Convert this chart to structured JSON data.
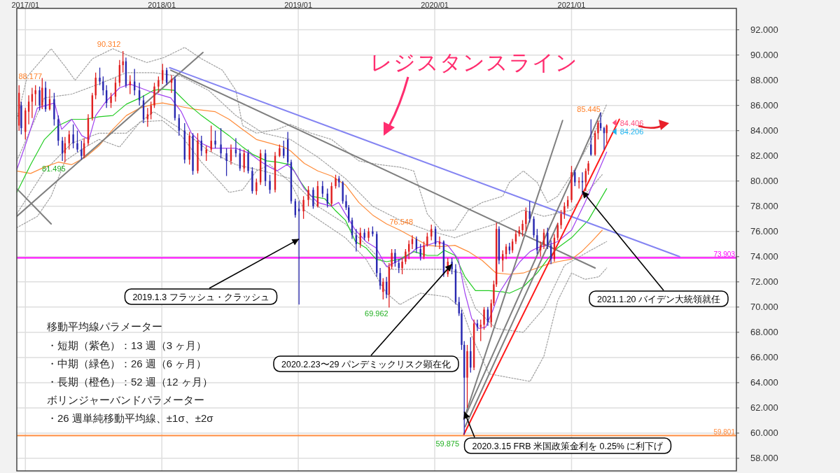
{
  "chart_data": {
    "type": "candlestick",
    "xlim": [
      "2016-12-09",
      "2022-03-18"
    ],
    "ylim": [
      57.0,
      93.7
    ],
    "grid": true,
    "xticks": [
      {
        "value": "2017-01-01",
        "label": "2017/01"
      },
      {
        "value": "2018-01-01",
        "label": "2018/01"
      },
      {
        "value": "2019-01-01",
        "label": "2019/01"
      },
      {
        "value": "2020-01-01",
        "label": "2020/01"
      },
      {
        "value": "2021-01-01",
        "label": "2021/01"
      }
    ],
    "yticks": [
      {
        "value": 58,
        "label": "58.000"
      },
      {
        "value": 60,
        "label": "60.000"
      },
      {
        "value": 62,
        "label": "62.000"
      },
      {
        "value": 64,
        "label": "64.000"
      },
      {
        "value": 66,
        "label": "66.000"
      },
      {
        "value": 68,
        "label": "68.000"
      },
      {
        "value": 70,
        "label": "70.000"
      },
      {
        "value": 72,
        "label": "72.000"
      },
      {
        "value": 74,
        "label": "74.000"
      },
      {
        "value": 76,
        "label": "76.000"
      },
      {
        "value": 78,
        "label": "78.000"
      },
      {
        "value": 80,
        "label": "80.000"
      },
      {
        "value": 82,
        "label": "82.000"
      },
      {
        "value": 84,
        "label": "84.000"
      },
      {
        "value": 86,
        "label": "86.000"
      },
      {
        "value": 88,
        "label": "88.000"
      },
      {
        "value": 90,
        "label": "90.000"
      },
      {
        "value": 92,
        "label": "92.000"
      }
    ],
    "ref_lines": [
      {
        "axis": "y",
        "value": 73.903,
        "label": "73.903",
        "color": "#ff00ff"
      },
      {
        "axis": "y",
        "value": 59.801,
        "label": "59.801",
        "color": "#ff8c40"
      }
    ],
    "series": [
      {
        "type": "line",
        "color": "#a0a0a0",
        "line_style": "dotted",
        "x": [
          "2016-12-09",
          "2017-01-06",
          "2017-03-11",
          "2017-04-17",
          "2017-05-14",
          "2017-06-29",
          "2017-08-23",
          "2017-10-08",
          "2017-11-22",
          "2018-01-07",
          "2018-03-03",
          "2018-04-17",
          "2018-06-12",
          "2018-07-18",
          "2018-08-05",
          "2018-09-11",
          "2018-11-05",
          "2018-12-11",
          "2019-02-04",
          "2019-03-31",
          "2019-06-12",
          "2019-08-06",
          "2019-09-30",
          "2019-11-06",
          "2019-12-12",
          "2020-01-18",
          "2020-02-24",
          "2020-03-31",
          "2020-05-07",
          "2020-07-01",
          "2020-07-19",
          "2020-08-25",
          "2020-10-01",
          "2020-10-29",
          "2020-11-25",
          "2021-01-01",
          "2021-02-24",
          "2021-04-05"
        ],
        "values": [
          84.9,
          88.3,
          90.5,
          89.1,
          88.0,
          89.7,
          90.5,
          89.9,
          89.4,
          89.8,
          90.6,
          89.7,
          88.8,
          87.2,
          84.4,
          83.8,
          84.1,
          84.5,
          83.8,
          83.3,
          81.6,
          81.3,
          81.1,
          80.8,
          77.4,
          76.1,
          76.1,
          77.7,
          78.3,
          78.8,
          79.9,
          80.8,
          79.9,
          78.3,
          78.8,
          80.5,
          83.3,
          86.1
        ]
      },
      {
        "type": "line",
        "color": "#a0a0a0",
        "line_style": "dotted",
        "x": [
          "2016-12-09",
          "2017-02-21",
          "2017-05-05",
          "2017-07-17",
          "2017-09-28",
          "2017-12-10",
          "2018-02-22",
          "2018-05-06",
          "2018-07-18",
          "2018-09-29",
          "2018-12-11",
          "2019-02-22",
          "2019-05-07",
          "2019-07-19",
          "2019-09-30",
          "2019-12-12",
          "2020-02-24",
          "2020-04-19",
          "2020-06-13",
          "2020-08-25",
          "2020-10-19",
          "2021-01-01",
          "2021-03-24"
        ],
        "values": [
          81.6,
          86.6,
          86.9,
          87.7,
          88.6,
          88.6,
          88.3,
          87.2,
          85.2,
          83.8,
          83.3,
          81.9,
          80.2,
          78.0,
          76.9,
          76.1,
          75.5,
          76.1,
          76.6,
          77.7,
          77.2,
          77.7,
          80.5
        ]
      },
      {
        "type": "line",
        "color": "#a0a0a0",
        "line_style": "dotted",
        "x": [
          "2016-12-09",
          "2017-02-21",
          "2017-05-05",
          "2017-07-17",
          "2017-09-28",
          "2017-12-10",
          "2018-02-22",
          "2018-05-06",
          "2018-07-18",
          "2018-09-29",
          "2018-12-11",
          "2019-02-22",
          "2019-05-07",
          "2019-07-19",
          "2019-09-03",
          "2019-11-06",
          "2020-01-18",
          "2020-03-13",
          "2020-04-19",
          "2020-06-13",
          "2020-08-25",
          "2020-10-19",
          "2020-12-13",
          "2021-02-15",
          "2021-04-05"
        ],
        "values": [
          77.4,
          80.8,
          83.0,
          83.8,
          83.8,
          85.5,
          84.1,
          82.4,
          81.3,
          80.8,
          80.2,
          78.0,
          76.6,
          74.4,
          73.0,
          73.0,
          73.0,
          72.7,
          69.9,
          68.3,
          68.0,
          69.9,
          73.3,
          74.4,
          75.2
        ]
      },
      {
        "type": "line",
        "color": "#a0a0a0",
        "line_style": "dotted",
        "x": [
          "2016-12-09",
          "2017-02-02",
          "2017-03-11",
          "2017-04-17",
          "2017-06-11",
          "2017-07-17",
          "2017-09-10",
          "2017-11-04",
          "2018-01-03",
          "2018-02-22",
          "2018-04-17",
          "2018-06-12",
          "2018-06-30",
          "2018-08-05",
          "2018-09-11",
          "2018-10-17",
          "2018-12-11",
          "2019-01-17",
          "2019-03-13",
          "2019-05-07",
          "2019-07-01",
          "2019-08-25",
          "2019-09-30",
          "2019-11-24",
          "2020-02-05",
          "2020-03-13",
          "2020-04-09",
          "2020-05-25",
          "2020-07-19",
          "2020-09-12",
          "2020-10-19",
          "2020-11-25",
          "2021-01-01",
          "2021-02-06",
          "2021-03-15",
          "2021-04-05"
        ],
        "values": [
          76.3,
          77.2,
          78.8,
          81.6,
          82.7,
          83.3,
          82.7,
          84.7,
          84.8,
          83.6,
          81.5,
          79.7,
          79.1,
          79.3,
          80.8,
          81.3,
          79.9,
          77.7,
          76.6,
          75.5,
          73.8,
          71.1,
          70.2,
          71.1,
          70.8,
          69.9,
          67.7,
          64.7,
          64.4,
          64.1,
          66.1,
          70.5,
          72.7,
          72.2,
          72.4,
          73.1
        ]
      },
      {
        "type": "line",
        "color": "#ff8c3a",
        "x": [
          "2016-12-09",
          "2017-01-15",
          "2017-02-21",
          "2017-03-30",
          "2017-05-05",
          "2017-06-11",
          "2017-07-17",
          "2017-08-23",
          "2017-09-28",
          "2017-11-04",
          "2017-12-10",
          "2018-01-03",
          "2018-02-22",
          "2018-03-30",
          "2018-05-24",
          "2018-06-30",
          "2018-08-05",
          "2018-09-11",
          "2018-10-17",
          "2018-11-23",
          "2018-12-11",
          "2019-01-17",
          "2019-02-22",
          "2019-03-31",
          "2019-05-07",
          "2019-06-12",
          "2019-07-19",
          "2019-08-25",
          "2019-09-30",
          "2019-11-06",
          "2019-12-12",
          "2020-01-18",
          "2020-02-24",
          "2020-03-31",
          "2020-05-07",
          "2020-06-13",
          "2020-07-19",
          "2020-08-25",
          "2020-10-01",
          "2020-10-29",
          "2020-11-25",
          "2021-01-01",
          "2021-01-28",
          "2021-02-24",
          "2021-03-24"
        ],
        "values": [
          80.8,
          80.6,
          81.1,
          81.5,
          81.3,
          81.9,
          82.8,
          84.1,
          85.2,
          85.8,
          86.1,
          86.2,
          85.9,
          85.7,
          85.5,
          84.9,
          84.1,
          83.3,
          83.0,
          82.7,
          82.4,
          81.4,
          80.8,
          80.4,
          79.7,
          78.3,
          77.3,
          76.6,
          76.1,
          75.5,
          74.9,
          74.8,
          74.9,
          74.4,
          73.7,
          72.7,
          72.6,
          72.7,
          73.1,
          73.4,
          73.6,
          73.8,
          74.4,
          75.2,
          76.1
        ]
      },
      {
        "type": "line",
        "color": "#22cc22",
        "x": [
          "2016-12-09",
          "2017-01-15",
          "2017-02-21",
          "2017-03-30",
          "2017-05-05",
          "2017-06-11",
          "2017-07-17",
          "2017-08-23",
          "2017-09-28",
          "2017-11-04",
          "2017-12-10",
          "2018-01-03",
          "2018-02-03",
          "2018-03-12",
          "2018-04-17",
          "2018-05-24",
          "2018-06-30",
          "2018-08-05",
          "2018-09-02",
          "2018-10-08",
          "2018-11-05",
          "2018-12-11",
          "2019-01-08",
          "2019-02-04",
          "2019-03-13",
          "2019-04-09",
          "2019-05-07",
          "2019-06-03",
          "2019-07-01",
          "2019-07-28",
          "2019-08-25",
          "2019-09-30",
          "2019-11-06",
          "2019-12-12",
          "2020-01-09",
          "2020-01-27",
          "2020-02-24",
          "2020-03-22",
          "2020-04-19",
          "2020-05-25",
          "2020-07-01",
          "2020-07-19",
          "2020-08-25",
          "2020-10-01",
          "2020-10-29",
          "2020-11-25",
          "2021-01-01",
          "2021-02-15",
          "2021-04-05"
        ],
        "values": [
          79.1,
          81.3,
          83.3,
          84.4,
          84.9,
          84.9,
          85.1,
          85.2,
          86.1,
          86.6,
          87.2,
          87.3,
          87.2,
          86.1,
          85.2,
          84.4,
          83.6,
          82.7,
          82.1,
          81.6,
          81.5,
          81.3,
          79.9,
          78.8,
          78.6,
          77.7,
          76.9,
          75.2,
          74.7,
          73.8,
          73.6,
          73.8,
          74.4,
          74.1,
          74.1,
          74.5,
          74.1,
          72.4,
          71.3,
          71.3,
          71.2,
          71.1,
          71.6,
          72.7,
          73.8,
          74.7,
          75.5,
          76.9,
          79.4
        ]
      },
      {
        "type": "line",
        "color": "#a040f0",
        "x": [
          "2016-12-09",
          "2017-01-06",
          "2017-02-02",
          "2017-03-20",
          "2017-04-08",
          "2017-05-05",
          "2017-06-01",
          "2017-06-20",
          "2017-07-08",
          "2017-08-04",
          "2017-09-10",
          "2017-10-08",
          "2017-11-04",
          "2017-12-10",
          "2018-01-25",
          "2018-02-22",
          "2018-03-21",
          "2018-04-17",
          "2018-05-15",
          "2018-06-12",
          "2018-07-18",
          "2018-08-24",
          "2018-09-20",
          "2018-10-17",
          "2018-11-05",
          "2018-12-02",
          "2018-12-21",
          "2019-01-17",
          "2019-02-22",
          "2019-03-31",
          "2019-04-19",
          "2019-05-07",
          "2019-06-03",
          "2019-07-01",
          "2019-07-28",
          "2019-08-25",
          "2019-09-21",
          "2019-10-18",
          "2019-11-15",
          "2019-12-12",
          "2020-01-09",
          "2020-02-05",
          "2020-03-04",
          "2020-03-22",
          "2020-04-09",
          "2020-04-28",
          "2020-05-16",
          "2020-06-04",
          "2020-06-21",
          "2020-07-19",
          "2020-08-16",
          "2020-09-12",
          "2020-10-01",
          "2020-10-29",
          "2020-11-25",
          "2021-01-01",
          "2021-02-06",
          "2021-04-05"
        ],
        "values": [
          80.9,
          83.3,
          85.8,
          86.2,
          84.1,
          84.9,
          83.6,
          83.3,
          85.2,
          86.3,
          87.4,
          87.7,
          87.4,
          87.0,
          86.6,
          85.5,
          83.8,
          83.0,
          82.6,
          82.6,
          82.6,
          82.2,
          81.6,
          81.1,
          80.8,
          81.3,
          80.8,
          79.4,
          78.3,
          78.0,
          78.3,
          77.4,
          76.1,
          75.2,
          74.7,
          73.2,
          73.6,
          74.0,
          74.7,
          74.9,
          75.2,
          74.9,
          73.8,
          71.1,
          69.1,
          68.3,
          68.4,
          69.7,
          71.1,
          72.4,
          73.6,
          74.4,
          74.7,
          74.9,
          75.2,
          76.1,
          78.3,
          82.3
        ]
      },
      {
        "type": "line",
        "color": "#7f7f7f",
        "x": [
          "2016-12-09",
          "2018-04-21"
        ],
        "values": [
          77.2,
          90.2
        ]
      },
      {
        "type": "line",
        "color": "#7f7f7f",
        "x": [
          "2016-12-09",
          "2017-03-11"
        ],
        "values": [
          79.4,
          76.6
        ]
      },
      {
        "type": "line",
        "color": "#7f7f7f",
        "x": [
          "2018-01-25",
          "2021-03-05"
        ],
        "values": [
          88.8,
          73.1
        ]
      },
      {
        "type": "line",
        "color": "#8484f2",
        "x": [
          "2018-01-22",
          "2021-10-17"
        ],
        "values": [
          89.0,
          74.0
        ]
      },
      {
        "type": "line",
        "color": "#7f7f7f",
        "x": [
          "2020-03-19",
          "2020-12-08"
        ],
        "values": [
          61.1,
          84.8
        ]
      },
      {
        "type": "line",
        "color": "#7f7f7f",
        "x": [
          "2020-03-19",
          "2021-03-20"
        ],
        "values": [
          61.1,
          85.4
        ]
      },
      {
        "type": "line",
        "color": "#7f7f7f",
        "x": [
          "2020-03-22",
          "2020-11-25"
        ],
        "values": [
          60.5,
          76.6
        ]
      },
      {
        "type": "line",
        "color": "#ff1a1a",
        "x": [
          "2020-03-19",
          "2021-05-09"
        ],
        "values": [
          59.9,
          84.9
        ]
      },
      {
        "x": [
          "2016-12-15",
          "2016-12-21",
          "2017-01-01",
          "2017-01-10",
          "2017-01-19",
          "2017-01-28",
          "2017-02-08",
          "2017-02-15",
          "2017-02-24",
          "2017-03-07",
          "2017-03-19",
          "2017-03-30",
          "2017-04-10",
          "2017-04-17",
          "2017-04-28",
          "2017-05-09",
          "2017-05-20",
          "2017-05-31",
          "2017-06-07",
          "2017-06-18",
          "2017-06-29",
          "2017-07-08",
          "2017-07-19",
          "2017-07-28",
          "2017-08-06",
          "2017-08-18",
          "2017-08-30",
          "2017-09-10",
          "2017-09-19",
          "2017-09-27",
          "2017-10-08",
          "2017-10-20",
          "2017-11-02",
          "2017-11-13",
          "2017-11-24",
          "2017-12-03",
          "2017-12-12",
          "2017-12-23",
          "2018-01-03",
          "2018-01-14",
          "2018-01-27",
          "2018-02-05",
          "2018-02-16",
          "2018-03-03",
          "2018-03-16",
          "2018-03-25",
          "2018-04-07",
          "2018-04-17",
          "2018-04-30",
          "2018-05-13",
          "2018-05-24",
          "2018-06-08",
          "2018-06-23",
          "2018-07-05",
          "2018-07-18",
          "2018-07-29",
          "2018-08-09",
          "2018-08-20",
          "2018-08-31",
          "2018-09-11",
          "2018-09-22",
          "2018-10-05",
          "2018-10-17",
          "2018-10-31",
          "2018-11-12",
          "2018-11-23",
          "2018-12-04",
          "2018-12-13",
          "2018-12-24",
          "2019-01-03",
          "2019-01-15",
          "2019-01-28",
          "2019-02-10",
          "2019-02-22",
          "2019-03-07",
          "2019-03-20",
          "2019-03-31",
          "2019-04-11",
          "2019-04-20",
          "2019-04-30",
          "2019-05-09",
          "2019-05-16",
          "2019-05-25",
          "2019-06-05",
          "2019-06-16",
          "2019-06-27",
          "2019-07-08",
          "2019-07-19",
          "2019-07-30",
          "2019-08-08",
          "2019-08-16",
          "2019-08-25",
          "2019-09-01",
          "2019-09-08",
          "2019-09-17",
          "2019-09-27",
          "2019-10-06",
          "2019-10-15",
          "2019-10-24",
          "2019-11-02",
          "2019-11-13",
          "2019-11-24",
          "2019-12-03",
          "2019-12-12",
          "2019-12-23",
          "2020-01-03",
          "2020-01-14",
          "2020-01-25",
          "2020-02-05",
          "2020-02-16",
          "2020-02-26",
          "2020-03-06",
          "2020-03-13",
          "2020-03-20",
          "2020-03-28",
          "2020-04-06",
          "2020-04-15",
          "2020-04-24",
          "2020-05-03",
          "2020-05-12",
          "2020-05-22",
          "2020-05-31",
          "2020-06-07",
          "2020-06-14",
          "2020-06-21",
          "2020-07-01",
          "2020-07-10",
          "2020-07-19",
          "2020-07-27",
          "2020-08-05",
          "2020-08-14",
          "2020-08-23",
          "2020-09-01",
          "2020-09-11",
          "2020-09-22",
          "2020-10-01",
          "2020-10-10",
          "2020-10-19",
          "2020-10-29",
          "2020-11-07",
          "2020-11-16",
          "2020-11-25",
          "2020-12-04",
          "2020-12-13",
          "2020-12-22",
          "2021-01-01",
          "2021-01-10",
          "2021-01-21",
          "2021-01-30",
          "2021-02-08",
          "2021-02-15",
          "2021-02-22",
          "2021-03-05",
          "2021-03-13",
          "2021-03-20",
          "2021-03-29",
          "2021-04-05"
        ],
        "ohlc": [
          [
            84.4,
            87.6,
            84.0,
            87.0
          ],
          [
            86.0,
            86.3,
            83.7,
            84.2
          ],
          [
            83.9,
            85.8,
            83.3,
            85.6
          ],
          [
            85.5,
            86.8,
            84.5,
            86.3
          ],
          [
            86.3,
            87.4,
            85.0,
            86.9
          ],
          [
            86.9,
            87.6,
            86.0,
            87.2
          ],
          [
            87.2,
            87.5,
            85.6,
            86.0
          ],
          [
            86.0,
            88.177,
            85.7,
            87.4
          ],
          [
            87.4,
            87.9,
            85.5,
            85.7
          ],
          [
            85.7,
            87.3,
            85.6,
            86.5
          ],
          [
            86.5,
            87.0,
            84.4,
            84.9
          ],
          [
            84.9,
            85.2,
            82.8,
            83.2
          ],
          [
            83.2,
            83.5,
            81.6,
            82.2
          ],
          [
            82.2,
            83.5,
            81.495,
            83.0
          ],
          [
            83.0,
            84.0,
            82.5,
            83.7
          ],
          [
            83.7,
            84.5,
            82.6,
            83.0
          ],
          [
            83.0,
            84.0,
            82.3,
            82.5
          ],
          [
            82.5,
            83.2,
            81.7,
            82.0
          ],
          [
            82.0,
            83.4,
            81.8,
            83.0
          ],
          [
            83.0,
            85.3,
            82.8,
            85.0
          ],
          [
            85.0,
            87.0,
            84.8,
            86.8
          ],
          [
            86.8,
            88.6,
            86.5,
            88.2
          ],
          [
            88.2,
            89.0,
            87.6,
            87.9
          ],
          [
            87.9,
            88.3,
            86.8,
            87.2
          ],
          [
            87.2,
            87.6,
            85.8,
            86.2
          ],
          [
            86.2,
            87.0,
            85.8,
            86.7
          ],
          [
            86.7,
            88.2,
            86.3,
            87.8
          ],
          [
            87.8,
            89.6,
            87.5,
            89.2
          ],
          [
            89.2,
            90.312,
            88.6,
            89.5
          ],
          [
            89.5,
            89.8,
            87.4,
            87.6
          ],
          [
            87.6,
            88.4,
            86.9,
            87.9
          ],
          [
            87.9,
            88.9,
            86.8,
            87.2
          ],
          [
            87.2,
            87.8,
            86.0,
            86.4
          ],
          [
            86.4,
            86.8,
            84.6,
            84.9
          ],
          [
            84.9,
            85.8,
            84.3,
            85.3
          ],
          [
            85.3,
            86.3,
            84.9,
            86.0
          ],
          [
            86.0,
            87.8,
            85.8,
            87.5
          ],
          [
            87.5,
            88.3,
            87.0,
            88.0
          ],
          [
            88.0,
            89.3,
            87.7,
            88.8
          ],
          [
            88.8,
            89.0,
            87.6,
            87.8
          ],
          [
            87.8,
            88.4,
            87.0,
            88.1
          ],
          [
            88.1,
            88.3,
            84.8,
            85.0
          ],
          [
            85.0,
            85.3,
            83.6,
            84.0
          ],
          [
            84.0,
            84.6,
            81.4,
            81.7
          ],
          [
            81.7,
            83.9,
            81.3,
            83.6
          ],
          [
            83.6,
            83.8,
            80.5,
            80.8
          ],
          [
            80.8,
            83.8,
            80.6,
            83.2
          ],
          [
            83.2,
            83.6,
            82.0,
            82.4
          ],
          [
            82.2,
            82.8,
            81.6,
            82.5
          ],
          [
            82.5,
            84.4,
            82.3,
            83.2
          ],
          [
            83.2,
            84.0,
            82.6,
            82.9
          ],
          [
            82.9,
            84.2,
            81.8,
            82.2
          ],
          [
            82.2,
            82.6,
            80.4,
            81.6
          ],
          [
            81.6,
            82.9,
            81.3,
            82.5
          ],
          [
            82.5,
            83.4,
            81.9,
            82.2
          ],
          [
            82.2,
            82.6,
            80.8,
            81.0
          ],
          [
            81.0,
            82.5,
            80.7,
            82.2
          ],
          [
            82.2,
            82.5,
            80.6,
            80.8
          ],
          [
            80.8,
            81.1,
            79.0,
            79.2
          ],
          [
            79.2,
            80.2,
            78.9,
            79.9
          ],
          [
            79.9,
            82.5,
            79.7,
            82.2
          ],
          [
            82.2,
            82.5,
            79.6,
            80.0
          ],
          [
            80.0,
            80.5,
            79.0,
            79.3
          ],
          [
            79.3,
            82.3,
            79.1,
            82.0
          ],
          [
            82.0,
            82.9,
            81.9,
            82.6
          ],
          [
            82.6,
            83.2,
            81.8,
            82.0
          ],
          [
            83.3,
            83.9,
            81.3,
            81.5
          ],
          [
            81.5,
            81.7,
            78.2,
            78.4
          ],
          [
            78.4,
            78.6,
            77.1,
            77.3
          ],
          [
            77.8,
            78.4,
            70.2,
            77.6
          ],
          [
            77.6,
            78.8,
            77.0,
            78.5
          ],
          [
            78.5,
            79.6,
            78.0,
            79.3
          ],
          [
            79.3,
            79.5,
            77.8,
            78.0
          ],
          [
            78.0,
            80.0,
            77.9,
            79.6
          ],
          [
            79.6,
            80.0,
            78.7,
            79.0
          ],
          [
            79.0,
            79.4,
            77.9,
            78.2
          ],
          [
            78.2,
            79.9,
            78.0,
            79.6
          ],
          [
            79.6,
            80.5,
            79.4,
            80.2
          ],
          [
            80.2,
            80.4,
            79.5,
            79.9
          ],
          [
            79.9,
            80.0,
            78.2,
            78.4
          ],
          [
            78.4,
            78.9,
            77.7,
            77.9
          ],
          [
            77.9,
            78.1,
            76.7,
            76.9
          ],
          [
            76.9,
            77.1,
            75.4,
            75.7
          ],
          [
            75.7,
            76.2,
            74.4,
            75.0
          ],
          [
            75.0,
            76.3,
            74.7,
            75.9
          ],
          [
            75.9,
            76.2,
            75.3,
            75.5
          ],
          [
            75.5,
            76.3,
            75.2,
            76.0
          ],
          [
            76.0,
            76.4,
            75.6,
            75.8
          ],
          [
            75.8,
            76.0,
            72.4,
            72.7
          ],
          [
            72.7,
            73.1,
            71.4,
            71.7
          ],
          [
            71.2,
            72.3,
            70.6,
            72.0
          ],
          [
            72.0,
            72.4,
            70.7,
            71.0
          ],
          [
            71.0,
            73.5,
            69.962,
            73.2
          ],
          [
            73.2,
            74.6,
            73.0,
            74.3
          ],
          [
            74.3,
            74.6,
            73.2,
            73.5
          ],
          [
            73.5,
            73.8,
            72.7,
            73.1
          ],
          [
            73.1,
            73.9,
            72.6,
            73.6
          ],
          [
            73.6,
            74.6,
            73.4,
            74.4
          ],
          [
            74.4,
            75.3,
            73.8,
            75.0
          ],
          [
            75.0,
            75.7,
            74.6,
            75.4
          ],
          [
            75.4,
            75.6,
            74.3,
            74.6
          ],
          [
            74.6,
            75.0,
            73.7,
            74.0
          ],
          [
            74.0,
            75.2,
            73.8,
            74.9
          ],
          [
            74.9,
            75.9,
            74.8,
            75.6
          ],
          [
            75.6,
            76.548,
            75.3,
            76.2
          ],
          [
            76.2,
            76.4,
            74.8,
            75.0
          ],
          [
            75.0,
            75.6,
            74.6,
            75.2
          ],
          [
            75.2,
            75.3,
            72.4,
            72.6
          ],
          [
            72.6,
            73.9,
            72.4,
            73.6
          ],
          [
            73.6,
            73.9,
            72.6,
            73.0
          ],
          [
            73.0,
            73.4,
            70.2,
            70.4
          ],
          [
            70.4,
            70.8,
            69.3,
            69.5
          ],
          [
            69.5,
            69.8,
            66.6,
            67.0
          ],
          [
            67.0,
            67.3,
            59.875,
            64.4
          ],
          [
            64.4,
            67.0,
            62.0,
            66.5
          ],
          [
            66.5,
            67.6,
            64.8,
            65.2
          ],
          [
            65.2,
            69.0,
            65.0,
            68.7
          ],
          [
            68.7,
            69.0,
            68.1,
            68.4
          ],
          [
            68.4,
            69.0,
            67.3,
            68.6
          ],
          [
            68.6,
            70.0,
            68.2,
            69.8
          ],
          [
            69.8,
            70.0,
            68.5,
            68.8
          ],
          [
            68.8,
            70.6,
            68.4,
            70.3
          ],
          [
            70.3,
            72.1,
            70.1,
            71.8
          ],
          [
            71.8,
            76.7,
            71.6,
            76.2
          ],
          [
            76.2,
            76.4,
            73.4,
            73.7
          ],
          [
            73.7,
            74.5,
            72.8,
            74.2
          ],
          [
            74.2,
            75.0,
            73.8,
            74.8
          ],
          [
            74.8,
            75.1,
            74.2,
            74.5
          ],
          [
            74.5,
            75.4,
            74.3,
            75.2
          ],
          [
            75.2,
            76.1,
            75.0,
            75.8
          ],
          [
            75.8,
            76.4,
            75.6,
            76.1
          ],
          [
            76.1,
            76.9,
            75.6,
            76.6
          ],
          [
            76.6,
            77.9,
            76.0,
            77.6
          ],
          [
            77.6,
            78.4,
            76.7,
            77.0
          ],
          [
            77.0,
            77.2,
            75.5,
            75.7
          ],
          [
            75.7,
            76.2,
            74.2,
            74.5
          ],
          [
            74.5,
            75.2,
            74.0,
            74.9
          ],
          [
            74.9,
            76.2,
            74.6,
            75.9
          ],
          [
            75.9,
            76.3,
            74.6,
            74.9
          ],
          [
            74.9,
            75.3,
            73.4,
            73.8
          ],
          [
            73.8,
            75.8,
            73.6,
            75.5
          ],
          [
            75.5,
            76.7,
            75.3,
            76.5
          ],
          [
            76.5,
            77.7,
            76.2,
            77.4
          ],
          [
            77.4,
            78.3,
            77.0,
            78.0
          ],
          [
            78.0,
            78.8,
            77.8,
            78.5
          ],
          [
            78.5,
            81.2,
            78.3,
            80.7
          ],
          [
            80.7,
            80.9,
            79.6,
            79.9
          ],
          [
            79.9,
            80.3,
            79.4,
            80.0
          ],
          [
            80.0,
            80.7,
            78.9,
            79.9
          ],
          [
            79.9,
            81.0,
            79.2,
            80.8
          ],
          [
            80.8,
            81.6,
            80.5,
            81.4
          ],
          [
            82.9,
            84.9,
            82.0,
            82.1
          ],
          [
            82.1,
            84.0,
            82.0,
            83.8
          ],
          [
            83.8,
            84.8,
            83.3,
            84.6
          ],
          [
            84.6,
            85.445,
            84.0,
            84.2
          ],
          [
            84.2,
            84.3,
            82.5,
            83.8
          ],
          [
            83.8,
            84.5,
            83.0,
            84.406
          ]
        ],
        "colors": [
          "#e02020",
          "#2828b0",
          "#e02020",
          "#e02020",
          "#e02020",
          "#e02020",
          "#2828b0",
          "#e02020",
          "#2828b0",
          "#e02020",
          "#2828b0",
          "#2828b0",
          "#2828b0",
          "#e02020",
          "#e02020",
          "#2828b0",
          "#2828b0",
          "#2828b0",
          "#e02020",
          "#e02020",
          "#e02020",
          "#e02020",
          "#2828b0",
          "#2828b0",
          "#2828b0",
          "#e02020",
          "#e02020",
          "#e02020",
          "#e02020",
          "#2828b0",
          "#e02020",
          "#2828b0",
          "#2828b0",
          "#2828b0",
          "#e02020",
          "#e02020",
          "#e02020",
          "#e02020",
          "#e02020",
          "#2828b0",
          "#e02020",
          "#2828b0",
          "#2828b0",
          "#2828b0",
          "#e02020",
          "#2828b0",
          "#e02020",
          "#2828b0",
          "#e02020",
          "#e02020",
          "#2828b0",
          "#2828b0",
          "#2828b0",
          "#e02020",
          "#2828b0",
          "#2828b0",
          "#e02020",
          "#2828b0",
          "#2828b0",
          "#e02020",
          "#e02020",
          "#2828b0",
          "#2828b0",
          "#e02020",
          "#e02020",
          "#2828b0",
          "#2828b0",
          "#2828b0",
          "#2828b0",
          "#2828b0",
          "#e02020",
          "#e02020",
          "#2828b0",
          "#e02020",
          "#2828b0",
          "#2828b0",
          "#e02020",
          "#e02020",
          "#2828b0",
          "#2828b0",
          "#2828b0",
          "#2828b0",
          "#2828b0",
          "#2828b0",
          "#e02020",
          "#2828b0",
          "#e02020",
          "#2828b0",
          "#2828b0",
          "#2828b0",
          "#e02020",
          "#2828b0",
          "#e02020",
          "#e02020",
          "#2828b0",
          "#2828b0",
          "#e02020",
          "#e02020",
          "#e02020",
          "#e02020",
          "#2828b0",
          "#2828b0",
          "#e02020",
          "#e02020",
          "#e02020",
          "#2828b0",
          "#e02020",
          "#2828b0",
          "#e02020",
          "#2828b0",
          "#2828b0",
          "#2828b0",
          "#2828b0",
          "#2828b0",
          "#e02020",
          "#2828b0",
          "#e02020",
          "#2828b0",
          "#e02020",
          "#e02020",
          "#2828b0",
          "#e02020",
          "#e02020",
          "#e02020",
          "#2828b0",
          "#e02020",
          "#e02020",
          "#2828b0",
          "#e02020",
          "#e02020",
          "#e02020",
          "#e02020",
          "#e02020",
          "#2828b0",
          "#2828b0",
          "#2828b0",
          "#e02020",
          "#e02020",
          "#2828b0",
          "#2828b0",
          "#e02020",
          "#e02020",
          "#e02020",
          "#e02020",
          "#e02020",
          "#e02020",
          "#2828b0",
          "#e02020",
          "#2828b0",
          "#e02020",
          "#e02020",
          "#2828b0",
          "#e02020",
          "#e02020",
          "#2828b0",
          "#2828b0",
          "#e02020"
        ]
      }
    ],
    "annotations": [
      "レジスタンスライン",
      {
        "text": "2019.1.3 フラッシュ・クラッシュ",
        "x": "2019-01-03",
        "y": 75.4
      },
      {
        "text": "2020.2.23〜29 パンデミックリスク顕在化",
        "x": "2020-02-16",
        "y": 73.4
      },
      {
        "text": "2020.3.15 FRB 米国政策金利を 0.25% に利下げ",
        "x": "2020-03-20",
        "y": 61.7
      },
      {
        "text": "2021.1.20 バイデン大統領就任",
        "x": "2021-01-30",
        "y": 79.2
      },
      "移動平均線パラメーター",
      "・短期（紫色）：13 週（3 ヶ月）",
      "・中期（緑色）：26 週（6 ヶ月）",
      "・長期（橙色）：52 週（12 ヶ月）",
      "ボリンジャーバンドパラメーター",
      "・26 週単純移動平均線、±1σ、±2σ",
      {
        "text": "90.312",
        "x": "2017-09-19",
        "y": 90.312
      },
      {
        "text": "88.177",
        "x": "2017-02-15",
        "y": 88.177
      },
      {
        "text": "81.495",
        "x": "2017-04-17",
        "y": 81.495
      },
      {
        "text": "76.548",
        "x": "2019-12-23",
        "y": 76.548
      },
      {
        "text": "69.962",
        "x": "2019-09-01",
        "y": 69.962
      },
      {
        "text": "59.875",
        "x": "2020-03-20",
        "y": 59.875
      },
      {
        "text": "85.445",
        "x": "2021-03-20",
        "y": 85.445
      },
      {
        "text": "84.406",
        "x": "2021-04-05",
        "y": 84.406
      },
      {
        "text": "84.206",
        "x": "2021-04-05",
        "y": 84.206
      }
    ]
  }
}
